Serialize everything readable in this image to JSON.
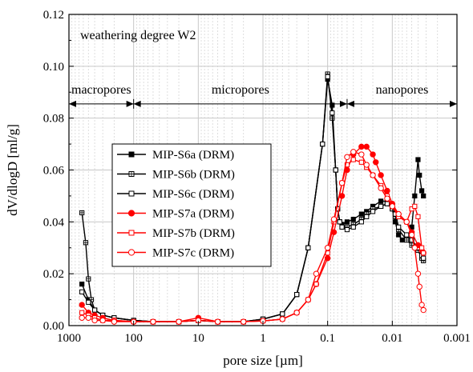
{
  "chart_data": {
    "type": "line",
    "title": "",
    "xlabel": "pore size [µm]",
    "ylabel": "dV/dlogD [ml/g]",
    "x_scale": "log",
    "x_reversed": true,
    "xlim": [
      1000,
      0.001
    ],
    "ylim": [
      0,
      0.12
    ],
    "x_ticks": [
      1000,
      100,
      10,
      1,
      0.1,
      0.01,
      0.001
    ],
    "x_tick_labels": [
      "1000",
      "100",
      "10",
      "1",
      "0.1",
      "0.01",
      "0.001"
    ],
    "y_ticks": [
      0,
      0.02,
      0.04,
      0.06,
      0.08,
      0.1,
      0.12
    ],
    "y_tick_labels": [
      "0.00",
      "0.02",
      "0.04",
      "0.06",
      "0.08",
      "0.10",
      "0.12"
    ],
    "grid": true,
    "legend_position": "left-center",
    "annotation": "weathering degree W2",
    "regions": [
      {
        "label": "macropores",
        "from": 1000,
        "to": 100
      },
      {
        "label": "micropores",
        "from": 100,
        "to": 0.05
      },
      {
        "label": "nanopores",
        "from": 0.05,
        "to": 0.001
      }
    ],
    "region_arrow_y": 0.0855,
    "series": [
      {
        "name": "MIP-S6a (DRM)",
        "color": "#000000",
        "marker": "square-filled",
        "x": [
          630,
          500,
          400,
          300,
          200,
          100,
          50,
          20,
          10,
          5,
          2,
          1,
          0.5,
          0.3,
          0.2,
          0.12,
          0.1,
          0.085,
          0.075,
          0.07,
          0.065,
          0.06,
          0.05,
          0.04,
          0.03,
          0.025,
          0.02,
          0.015,
          0.012,
          0.011,
          0.01,
          0.009,
          0.008,
          0.007,
          0.006,
          0.005,
          0.0045,
          0.004,
          0.0038,
          0.0035,
          0.0033
        ],
        "y": [
          0.016,
          0.01,
          0.006,
          0.004,
          0.003,
          0.002,
          0.0015,
          0.0015,
          0.002,
          0.0015,
          0.0015,
          0.0025,
          0.0045,
          0.012,
          0.03,
          0.07,
          0.095,
          0.085,
          0.06,
          0.045,
          0.04,
          0.039,
          0.04,
          0.041,
          0.043,
          0.044,
          0.046,
          0.048,
          0.048,
          0.047,
          0.045,
          0.04,
          0.035,
          0.033,
          0.033,
          0.038,
          0.05,
          0.064,
          0.058,
          0.052,
          0.05
        ]
      },
      {
        "name": "MIP-S6b (DRM)",
        "color": "#000000",
        "marker": "square-crossed",
        "x": [
          630,
          550,
          500,
          450,
          400,
          300,
          200,
          100,
          50,
          20,
          10,
          5,
          2,
          1,
          0.5,
          0.3,
          0.2,
          0.12,
          0.1,
          0.085,
          0.075,
          0.07,
          0.065,
          0.06,
          0.05,
          0.04,
          0.03,
          0.025,
          0.02,
          0.015,
          0.012,
          0.01,
          0.009,
          0.008,
          0.006,
          0.005,
          0.004,
          0.0035,
          0.0033
        ],
        "y": [
          0.0435,
          0.032,
          0.018,
          0.01,
          0.006,
          0.004,
          0.003,
          0.002,
          0.0015,
          0.0015,
          0.002,
          0.0015,
          0.0015,
          0.0025,
          0.0045,
          0.012,
          0.03,
          0.07,
          0.097,
          0.08,
          0.06,
          0.045,
          0.04,
          0.038,
          0.038,
          0.039,
          0.041,
          0.043,
          0.045,
          0.046,
          0.047,
          0.045,
          0.042,
          0.037,
          0.033,
          0.031,
          0.029,
          0.026,
          0.025
        ]
      },
      {
        "name": "MIP-S6c (DRM)",
        "color": "#000000",
        "marker": "square-open",
        "x": [
          630,
          500,
          400,
          300,
          200,
          100,
          50,
          20,
          10,
          5,
          2,
          1,
          0.5,
          0.3,
          0.2,
          0.12,
          0.1,
          0.085,
          0.075,
          0.07,
          0.065,
          0.06,
          0.05,
          0.04,
          0.03,
          0.025,
          0.02,
          0.015,
          0.012,
          0.01,
          0.009,
          0.008,
          0.006,
          0.005,
          0.004,
          0.0035,
          0.0033
        ],
        "y": [
          0.013,
          0.009,
          0.006,
          0.004,
          0.003,
          0.002,
          0.0015,
          0.0015,
          0.002,
          0.0015,
          0.0015,
          0.0025,
          0.0045,
          0.012,
          0.03,
          0.07,
          0.096,
          0.082,
          0.06,
          0.045,
          0.04,
          0.038,
          0.037,
          0.038,
          0.04,
          0.042,
          0.044,
          0.046,
          0.047,
          0.046,
          0.043,
          0.038,
          0.035,
          0.033,
          0.03,
          0.027,
          0.026
        ]
      },
      {
        "name": "MIP-S7a (DRM)",
        "color": "#ff0000",
        "marker": "circle-filled",
        "x": [
          630,
          500,
          400,
          300,
          200,
          100,
          50,
          20,
          10,
          5,
          2,
          1,
          0.5,
          0.3,
          0.2,
          0.15,
          0.1,
          0.08,
          0.06,
          0.05,
          0.04,
          0.03,
          0.025,
          0.02,
          0.018,
          0.015,
          0.012,
          0.01,
          0.008,
          0.006,
          0.005,
          0.004,
          0.0035,
          0.0033
        ],
        "y": [
          0.008,
          0.005,
          0.004,
          0.003,
          0.002,
          0.0015,
          0.0015,
          0.0015,
          0.003,
          0.0015,
          0.0015,
          0.0018,
          0.0025,
          0.005,
          0.01,
          0.016,
          0.026,
          0.036,
          0.05,
          0.06,
          0.066,
          0.069,
          0.069,
          0.066,
          0.063,
          0.058,
          0.052,
          0.047,
          0.043,
          0.04,
          0.036,
          0.031,
          0.029,
          0.028
        ]
      },
      {
        "name": "MIP-S7b (DRM)",
        "color": "#ff0000",
        "marker": "square-open",
        "x": [
          630,
          500,
          400,
          300,
          200,
          100,
          50,
          20,
          10,
          5,
          2,
          1,
          0.5,
          0.3,
          0.2,
          0.15,
          0.1,
          0.08,
          0.06,
          0.05,
          0.04,
          0.03,
          0.025,
          0.02,
          0.015,
          0.012,
          0.01,
          0.008,
          0.006,
          0.005,
          0.0045,
          0.004,
          0.0035,
          0.0033
        ],
        "y": [
          0.005,
          0.004,
          0.003,
          0.002,
          0.002,
          0.0015,
          0.0015,
          0.0015,
          0.002,
          0.0015,
          0.0015,
          0.0018,
          0.0025,
          0.005,
          0.01,
          0.016,
          0.028,
          0.04,
          0.055,
          0.062,
          0.064,
          0.063,
          0.061,
          0.058,
          0.054,
          0.05,
          0.046,
          0.042,
          0.04,
          0.045,
          0.046,
          0.042,
          0.03,
          0.028
        ]
      },
      {
        "name": "MIP-S7c (DRM)",
        "color": "#ff0000",
        "marker": "circle-open",
        "x": [
          630,
          500,
          400,
          300,
          200,
          100,
          50,
          20,
          10,
          5,
          2,
          1,
          0.5,
          0.3,
          0.2,
          0.15,
          0.1,
          0.08,
          0.06,
          0.05,
          0.04,
          0.03,
          0.025,
          0.02,
          0.015,
          0.012,
          0.01,
          0.008,
          0.006,
          0.005,
          0.0045,
          0.004,
          0.0038,
          0.0035,
          0.0033
        ],
        "y": [
          0.003,
          0.003,
          0.002,
          0.002,
          0.0015,
          0.0015,
          0.0015,
          0.0015,
          0.002,
          0.0015,
          0.0015,
          0.0018,
          0.0025,
          0.005,
          0.01,
          0.02,
          0.03,
          0.041,
          0.055,
          0.065,
          0.067,
          0.066,
          0.062,
          0.058,
          0.053,
          0.049,
          0.046,
          0.043,
          0.04,
          0.035,
          0.03,
          0.02,
          0.015,
          0.008,
          0.006
        ]
      }
    ]
  }
}
